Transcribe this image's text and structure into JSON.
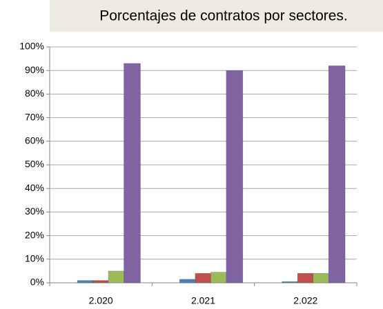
{
  "chart_data": {
    "type": "bar",
    "title": "Porcentajes de contratos por sectores.",
    "categories": [
      "2.020",
      "2.021",
      "2.022"
    ],
    "series": [
      {
        "color": "#4f81bd",
        "values": [
          1,
          1.5,
          0.5
        ]
      },
      {
        "color": "#c0504d",
        "values": [
          1,
          4,
          4
        ]
      },
      {
        "color": "#9bbb59",
        "values": [
          5,
          4.5,
          4
        ]
      },
      {
        "color": "#8064a2",
        "values": [
          93,
          90,
          92
        ]
      }
    ],
    "ylim": [
      0,
      100
    ],
    "yticks": [
      {
        "value": 0,
        "label": "0%"
      },
      {
        "value": 10,
        "label": "10%"
      },
      {
        "value": 20,
        "label": "20%"
      },
      {
        "value": 30,
        "label": "30%"
      },
      {
        "value": 40,
        "label": "40%"
      },
      {
        "value": 50,
        "label": "50%"
      },
      {
        "value": 60,
        "label": "60%"
      },
      {
        "value": 70,
        "label": "70%"
      },
      {
        "value": 80,
        "label": "80%"
      },
      {
        "value": 90,
        "label": "90%"
      },
      {
        "value": 100,
        "label": "100%"
      }
    ],
    "grid": true
  }
}
